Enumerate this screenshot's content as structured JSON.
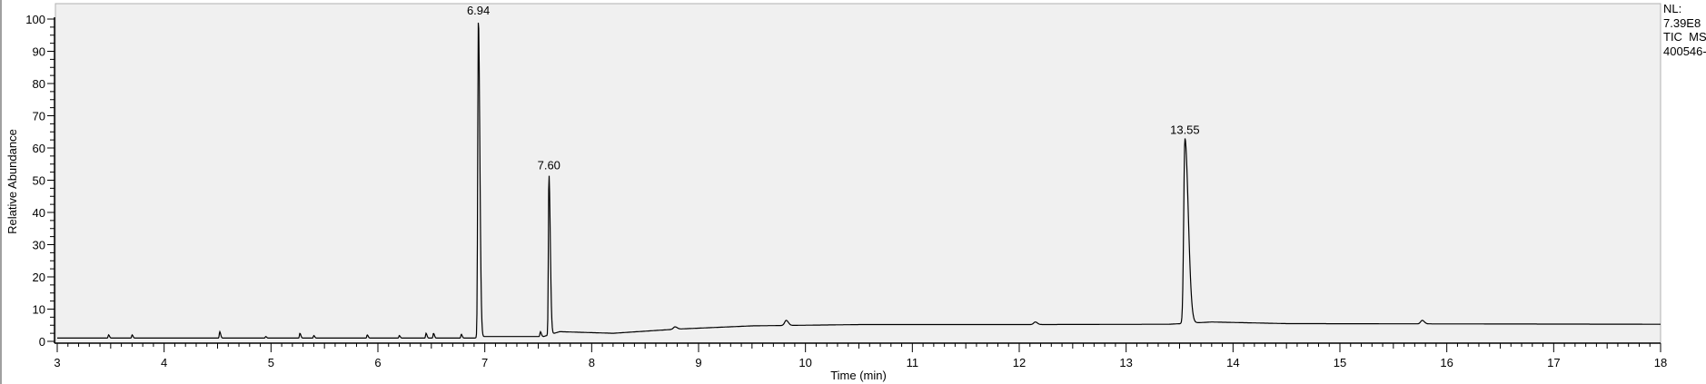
{
  "chart_data": {
    "type": "line",
    "xlabel": "Time (min)",
    "ylabel": "Relative Abundance",
    "xlim": [
      3,
      18
    ],
    "ylim": [
      0,
      100
    ],
    "x_ticks": [
      3,
      4,
      5,
      6,
      7,
      8,
      9,
      10,
      11,
      12,
      13,
      14,
      15,
      16,
      17,
      18
    ],
    "y_ticks": [
      0,
      10,
      20,
      30,
      40,
      50,
      60,
      70,
      80,
      90,
      100
    ],
    "grid": false,
    "background": "#f0f0f0",
    "line_color": "#000000",
    "info": [
      "NL:",
      "7.39E8",
      "TIC  MS",
      "400546-"
    ],
    "labeled_peaks": [
      {
        "rt": 6.94,
        "label": "6.94",
        "abundance": 100
      },
      {
        "rt": 7.6,
        "label": "7.60",
        "abundance": 52
      },
      {
        "rt": 13.55,
        "label": "13.55",
        "abundance": 63
      }
    ],
    "minor_peaks": [
      {
        "rt": 3.48,
        "abundance": 2
      },
      {
        "rt": 3.7,
        "abundance": 2
      },
      {
        "rt": 4.52,
        "abundance": 3
      },
      {
        "rt": 4.95,
        "abundance": 1.5
      },
      {
        "rt": 5.27,
        "abundance": 2.5
      },
      {
        "rt": 5.4,
        "abundance": 1.8
      },
      {
        "rt": 5.9,
        "abundance": 2
      },
      {
        "rt": 6.2,
        "abundance": 1.8
      },
      {
        "rt": 6.45,
        "abundance": 2.5
      },
      {
        "rt": 6.52,
        "abundance": 2.5
      },
      {
        "rt": 6.78,
        "abundance": 2.2
      },
      {
        "rt": 7.52,
        "abundance": 3
      },
      {
        "rt": 8.78,
        "abundance": 4.5
      },
      {
        "rt": 9.82,
        "abundance": 6.5
      },
      {
        "rt": 12.15,
        "abundance": 6
      },
      {
        "rt": 15.77,
        "abundance": 6.5
      }
    ],
    "baseline": [
      [
        3,
        1
      ],
      [
        6.9,
        1
      ],
      [
        7.0,
        1.5
      ],
      [
        7.55,
        1.5
      ],
      [
        7.7,
        3
      ],
      [
        8.2,
        2.5
      ],
      [
        8.8,
        3.8
      ],
      [
        9.5,
        4.8
      ],
      [
        10.5,
        5.2
      ],
      [
        12,
        5.2
      ],
      [
        13.4,
        5.3
      ],
      [
        13.8,
        6
      ],
      [
        14.5,
        5.5
      ],
      [
        18,
        5.3
      ]
    ]
  }
}
